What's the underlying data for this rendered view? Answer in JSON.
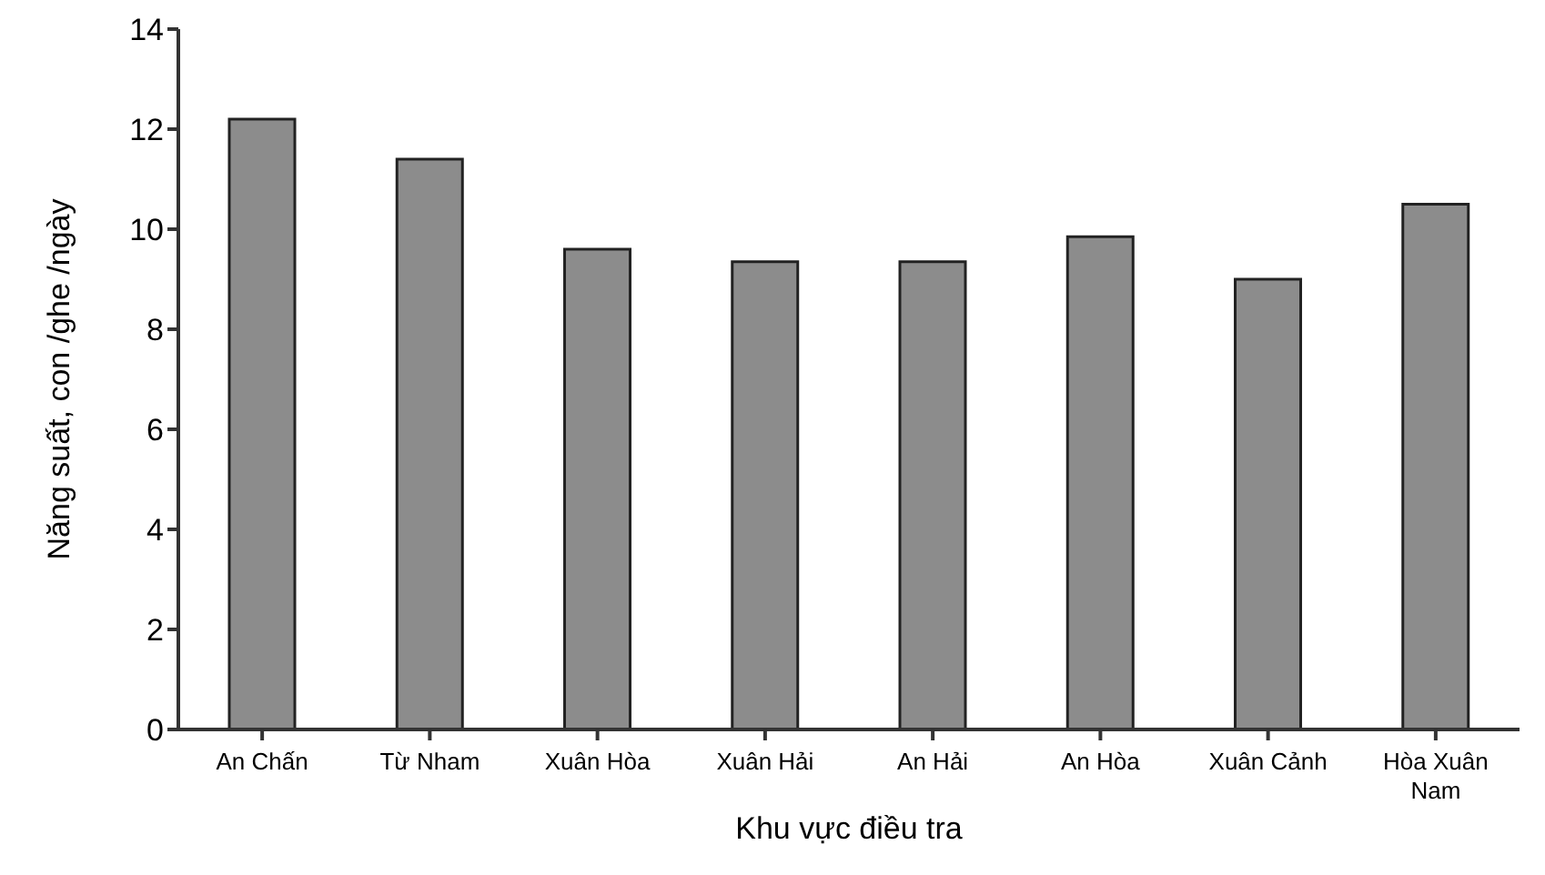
{
  "chart_data": {
    "type": "bar",
    "xlabel": "Khu vực điều tra",
    "ylabel": "Năng suất, con /ghe /ngày",
    "categories": [
      "An Chấn",
      "Từ Nham",
      "Xuân Hòa",
      "Xuân Hải",
      "An Hải",
      "An Hòa",
      "Xuân Cảnh",
      "Hòa Xuân Nam"
    ],
    "values": [
      12.2,
      11.4,
      9.6,
      9.35,
      9.35,
      9.85,
      9.0,
      10.5
    ],
    "color": "#8c8c8c",
    "ylim": [
      0,
      14
    ],
    "yticks": [
      0,
      2,
      4,
      6,
      8,
      10,
      12,
      14
    ],
    "grid": false,
    "legend": false
  }
}
